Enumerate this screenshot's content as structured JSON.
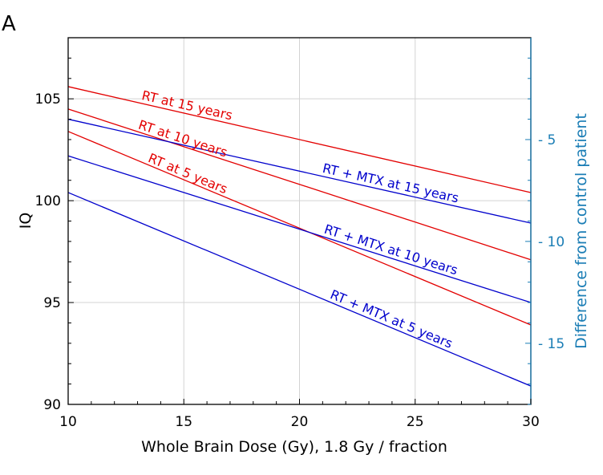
{
  "panel_label": "A",
  "colors": {
    "red": "#e30000",
    "blue": "#0000cc",
    "right_axis": "#1a7db5",
    "grid": "#d3d3d3"
  },
  "chart_data": {
    "type": "line",
    "title": "",
    "xlabel": "Whole Brain Dose (Gy), 1.8 Gy / fraction",
    "ylabel": "IQ",
    "y2label": "Difference from control patient",
    "xlim": [
      10,
      30
    ],
    "ylim": [
      90,
      108
    ],
    "xticks": [
      10,
      15,
      20,
      25,
      30
    ],
    "yticks": [
      90,
      95,
      100,
      105
    ],
    "y2ticks": [
      {
        "label": "- 5",
        "iq": 103
      },
      {
        "label": "- 10",
        "iq": 98
      },
      {
        "label": "- 15",
        "iq": 93
      }
    ],
    "grid": true,
    "series": [
      {
        "name": "RT at 15 years",
        "color": "red",
        "x": [
          10,
          30
        ],
        "y": [
          105.6,
          100.4
        ]
      },
      {
        "name": "RT at 10 years",
        "color": "red",
        "x": [
          10,
          30
        ],
        "y": [
          104.5,
          97.1
        ]
      },
      {
        "name": "RT at 5 years",
        "color": "red",
        "x": [
          10,
          30
        ],
        "y": [
          103.4,
          93.9
        ]
      },
      {
        "name": "RT + MTX at 15 years",
        "color": "blue",
        "x": [
          10,
          30
        ],
        "y": [
          104.0,
          98.9
        ]
      },
      {
        "name": "RT + MTX at 10 years",
        "color": "blue",
        "x": [
          10,
          30
        ],
        "y": [
          102.2,
          95.0
        ]
      },
      {
        "name": "RT + MTX at 5 years",
        "color": "blue",
        "x": [
          10,
          30
        ],
        "y": [
          100.4,
          90.9
        ]
      }
    ]
  }
}
